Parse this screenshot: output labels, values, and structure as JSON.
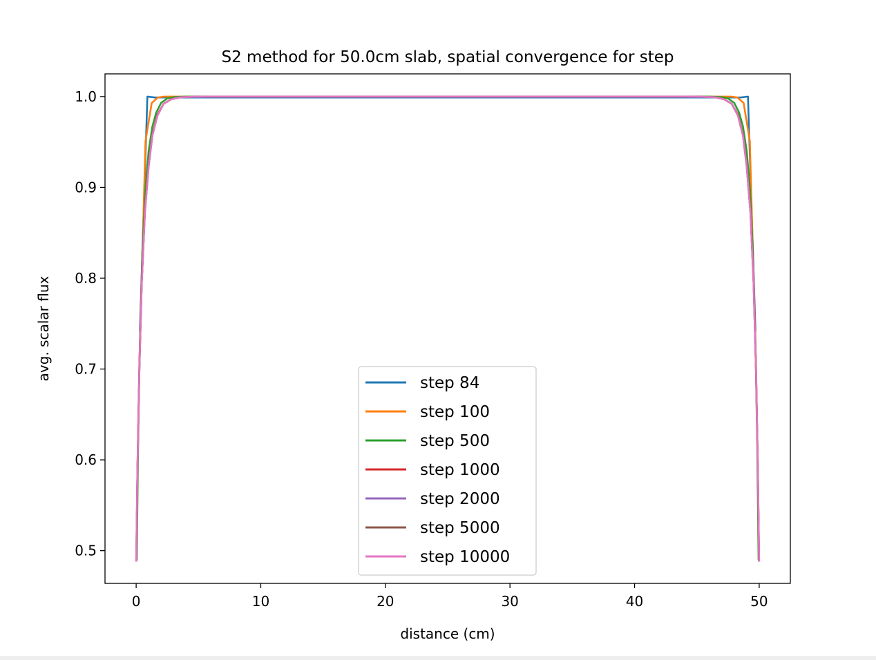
{
  "chart_data": {
    "type": "line",
    "title": "S2 method for 50.0cm slab, spatial convergence for step",
    "xlabel": "distance (cm)",
    "ylabel": "avg. scalar flux",
    "xlim": [
      -2.5,
      52.5
    ],
    "ylim": [
      0.464,
      1.025
    ],
    "xticks": [
      0,
      10,
      20,
      30,
      40,
      50
    ],
    "xtick_labels": [
      "0",
      "10",
      "20",
      "30",
      "40",
      "50"
    ],
    "yticks": [
      0.5,
      0.6,
      0.7,
      0.8,
      0.9,
      1.0
    ],
    "ytick_labels": [
      "0.5",
      "0.6",
      "0.7",
      "0.8",
      "0.9",
      "1.0"
    ],
    "grid": false,
    "legend_position": "lower center",
    "series": [
      {
        "name": "step 84",
        "color": "#1f77b4",
        "x": [
          0.3,
          0.9,
          1.5,
          2.1,
          25,
          47.9,
          48.5,
          49.1,
          49.7
        ],
        "y": [
          0.742,
          1.0,
          0.999,
          0.999,
          0.999,
          0.999,
          0.999,
          1.0,
          0.742
        ]
      },
      {
        "name": "step 100",
        "color": "#ff7f0e",
        "x": [
          0.25,
          0.75,
          1.25,
          1.75,
          2.25,
          2.75,
          25,
          47.25,
          47.75,
          48.25,
          48.75,
          49.25,
          49.75
        ],
        "y": [
          0.7,
          0.951,
          0.993,
          0.999,
          1.0,
          1.0,
          1.0,
          1.0,
          1.0,
          0.999,
          0.993,
          0.951,
          0.7
        ]
      },
      {
        "name": "step 500",
        "color": "#2ca02c",
        "x": [
          0.05,
          0.15,
          0.3,
          0.5,
          0.75,
          1.0,
          1.3,
          1.6,
          2.0,
          2.5,
          3.0,
          3.5,
          4.0,
          5.0,
          6.0,
          25,
          44.0,
          45.0,
          46.0,
          46.5,
          47.0,
          47.5,
          48.0,
          48.4,
          48.7,
          49.0,
          49.25,
          49.5,
          49.7,
          49.85,
          49.95
        ],
        "y": [
          0.49,
          0.61,
          0.73,
          0.83,
          0.9,
          0.94,
          0.967,
          0.982,
          0.993,
          0.998,
          0.9993,
          0.9998,
          1.0,
          1.0,
          1.0,
          1.0,
          1.0,
          1.0,
          1.0,
          0.9998,
          0.9993,
          0.998,
          0.993,
          0.982,
          0.967,
          0.94,
          0.9,
          0.83,
          0.73,
          0.61,
          0.49
        ]
      },
      {
        "name": "step 1000",
        "color": "#d62728",
        "x": [
          0.02,
          0.1,
          0.25,
          0.45,
          0.7,
          1.0,
          1.3,
          1.7,
          2.2,
          2.8,
          3.5,
          4.5,
          6.0,
          25,
          44.0,
          45.5,
          46.5,
          47.2,
          47.8,
          48.3,
          48.7,
          49.0,
          49.3,
          49.55,
          49.75,
          49.9,
          49.98
        ],
        "y": [
          0.488,
          0.59,
          0.7,
          0.8,
          0.875,
          0.925,
          0.958,
          0.98,
          0.992,
          0.997,
          0.9992,
          0.9998,
          1.0,
          1.0,
          1.0,
          0.9998,
          0.9992,
          0.997,
          0.992,
          0.98,
          0.958,
          0.925,
          0.875,
          0.8,
          0.7,
          0.59,
          0.488
        ]
      },
      {
        "name": "step 2000",
        "color": "#9467bd",
        "x": [
          0.01,
          0.1,
          0.25,
          0.45,
          0.7,
          1.0,
          1.3,
          1.7,
          2.2,
          2.8,
          3.5,
          4.5,
          6.0,
          25,
          44.0,
          45.5,
          46.5,
          47.2,
          47.8,
          48.3,
          48.7,
          49.0,
          49.3,
          49.55,
          49.75,
          49.9,
          49.99
        ],
        "y": [
          0.488,
          0.585,
          0.695,
          0.795,
          0.872,
          0.923,
          0.957,
          0.979,
          0.992,
          0.997,
          0.9992,
          0.9998,
          1.0,
          1.0,
          1.0,
          0.9998,
          0.9992,
          0.997,
          0.992,
          0.979,
          0.957,
          0.923,
          0.872,
          0.795,
          0.695,
          0.585,
          0.488
        ]
      },
      {
        "name": "step 5000",
        "color": "#8c564b",
        "x": [
          0.005,
          0.1,
          0.25,
          0.45,
          0.7,
          1.0,
          1.3,
          1.7,
          2.2,
          2.8,
          3.5,
          4.5,
          6.0,
          25,
          44.0,
          45.5,
          46.5,
          47.2,
          47.8,
          48.3,
          48.7,
          49.0,
          49.3,
          49.55,
          49.75,
          49.9,
          49.995
        ],
        "y": [
          0.488,
          0.585,
          0.695,
          0.795,
          0.872,
          0.923,
          0.957,
          0.979,
          0.992,
          0.997,
          0.9992,
          0.9998,
          1.0,
          1.0,
          1.0,
          0.9998,
          0.9992,
          0.997,
          0.992,
          0.979,
          0.957,
          0.923,
          0.872,
          0.795,
          0.695,
          0.585,
          0.488
        ]
      },
      {
        "name": "step 10000",
        "color": "#e377c2",
        "x": [
          0.0025,
          0.1,
          0.25,
          0.45,
          0.7,
          1.0,
          1.3,
          1.7,
          2.2,
          2.8,
          3.5,
          4.5,
          6.0,
          25,
          44.0,
          45.5,
          46.5,
          47.2,
          47.8,
          48.3,
          48.7,
          49.0,
          49.3,
          49.55,
          49.75,
          49.9,
          49.9975
        ],
        "y": [
          0.488,
          0.585,
          0.695,
          0.795,
          0.872,
          0.923,
          0.957,
          0.979,
          0.992,
          0.997,
          0.9992,
          0.9998,
          1.0,
          1.0,
          1.0,
          0.9998,
          0.9992,
          0.997,
          0.992,
          0.979,
          0.957,
          0.923,
          0.872,
          0.795,
          0.695,
          0.585,
          0.488
        ]
      }
    ]
  }
}
